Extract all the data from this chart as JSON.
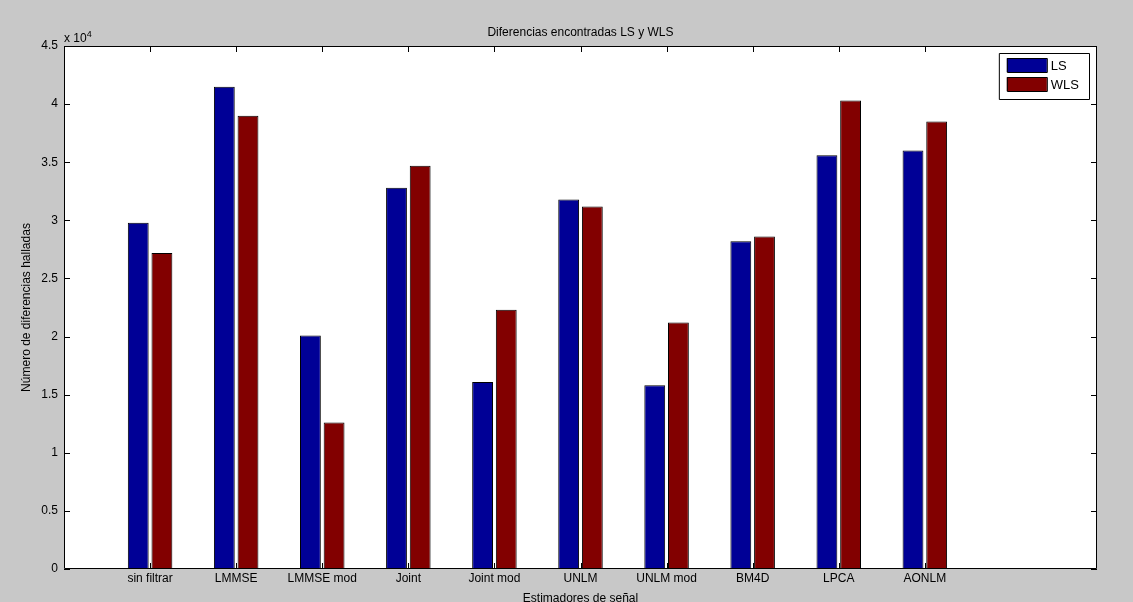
{
  "chart_data": {
    "type": "bar",
    "title": "Diferencias encontradas LS y WLS",
    "xlabel": "Estimadores de señal",
    "ylabel": "Número de diferencias halladas",
    "annotations": [
      "x 10$^{4}$"
    ],
    "categories": [
      "sin filtrar",
      "LMMSE",
      "LMMSE mod",
      "Joint",
      "Joint mod",
      "UNLM",
      "UNLM mod",
      "BM4D",
      "LPCA",
      "AONLM"
    ],
    "series": [
      {
        "name": "LS",
        "color": "#000096",
        "values": [
          2.98,
          4.15,
          2.01,
          3.28,
          1.61,
          3.18,
          1.58,
          2.82,
          3.56,
          3.6
        ]
      },
      {
        "name": "WLS",
        "color": "#820000",
        "values": [
          2.72,
          3.9,
          1.26,
          3.47,
          2.23,
          3.12,
          2.12,
          2.86,
          4.03,
          3.85
        ]
      }
    ],
    "ylim": [
      0,
      4.5
    ],
    "yticks": [
      0,
      0.5,
      1,
      1.5,
      2,
      2.5,
      3,
      3.5,
      4,
      4.5
    ],
    "grid": false,
    "legend": "top right"
  }
}
